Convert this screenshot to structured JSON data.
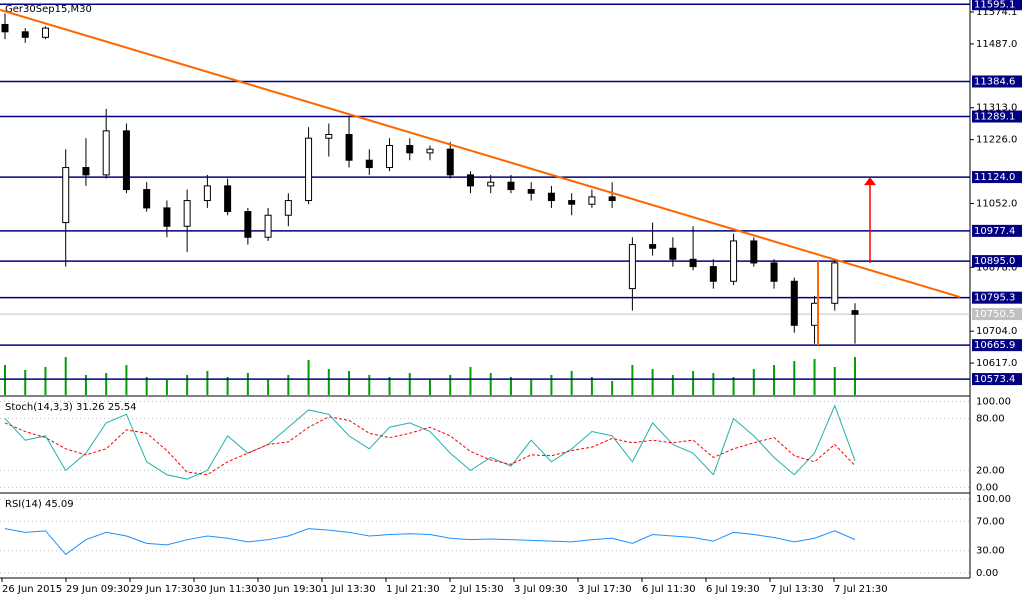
{
  "chart_data": {
    "type": "candlestick",
    "title": "Ger30Sep15,M30",
    "x_labels": [
      "26 Jun 2015",
      "29 Jun 09:30",
      "29 Jun 17:30",
      "30 Jun 11:30",
      "30 Jun 19:30",
      "1 Jul 13:30",
      "1 Jul 21:30",
      "2 Jul 15:30",
      "3 Jul 09:30",
      "3 Jul 17:30",
      "6 Jul 11:30",
      "6 Jul 19:30",
      "7 Jul 13:30",
      "7 Jul 21:30"
    ],
    "ylim": [
      10530,
      11606.7
    ],
    "yticks": [
      {
        "value": 11574.1,
        "label": "11574.1"
      },
      {
        "value": 11487,
        "label": "11487.0"
      },
      {
        "value": 11313,
        "label": "11313.0"
      },
      {
        "value": 11226,
        "label": "11226.0"
      },
      {
        "value": 11052,
        "label": "11052.0"
      },
      {
        "value": 10878,
        "label": "10878.0"
      },
      {
        "value": 10704,
        "label": "10704.0"
      },
      {
        "value": 10617,
        "label": "10617.0"
      }
    ],
    "open": [
      11540,
      11520,
      11505,
      11000,
      11150,
      11130,
      11250,
      11090,
      11040,
      10990,
      11060,
      11100,
      11030,
      10960,
      11020,
      11060,
      11230,
      11240,
      11170,
      11150,
      11210,
      11190,
      11200,
      11130,
      11100,
      11110,
      11090,
      11080,
      11060,
      11050,
      11070,
      10820,
      10940,
      10930,
      10900,
      10880,
      10840,
      10950,
      10890,
      10840,
      10720,
      10780,
      10760
    ],
    "high": [
      11570,
      11530,
      11535,
      11200,
      11230,
      11310,
      11270,
      11110,
      11060,
      11090,
      11130,
      11120,
      11040,
      11040,
      11080,
      11260,
      11270,
      11290,
      11200,
      11230,
      11230,
      11210,
      11220,
      11140,
      11130,
      11130,
      11110,
      11100,
      11080,
      11090,
      11110,
      10960,
      11000,
      10960,
      10990,
      10900,
      10970,
      10960,
      10900,
      10850,
      10800,
      10900,
      10780
    ],
    "low": [
      11500,
      11490,
      11500,
      10880,
      11100,
      11120,
      11080,
      11030,
      10960,
      10920,
      11040,
      11020,
      10940,
      10950,
      10990,
      11050,
      11180,
      11150,
      11130,
      11140,
      11170,
      11170,
      11120,
      11080,
      11080,
      11080,
      11060,
      11040,
      11020,
      11040,
      11040,
      10760,
      10910,
      10880,
      10870,
      10820,
      10830,
      10880,
      10820,
      10700,
      10670,
      10760,
      10670
    ],
    "close": [
      11520,
      11505,
      11530,
      11150,
      11130,
      11250,
      11090,
      11040,
      10990,
      11060,
      11100,
      11030,
      10960,
      11020,
      11060,
      11230,
      11240,
      11170,
      11150,
      11210,
      11190,
      11200,
      11130,
      11100,
      11110,
      11090,
      11080,
      11060,
      11050,
      11070,
      11060,
      10940,
      10930,
      10900,
      10880,
      10840,
      10950,
      10890,
      10840,
      10720,
      10780,
      10890,
      10750
    ],
    "up_color": "#000000",
    "down_color": "#000000",
    "volume": [
      30,
      25,
      28,
      38,
      20,
      22,
      30,
      18,
      15,
      20,
      24,
      18,
      22,
      16,
      20,
      35,
      26,
      24,
      20,
      18,
      22,
      16,
      20,
      28,
      22,
      18,
      16,
      20,
      24,
      18,
      14,
      30,
      26,
      20,
      24,
      22,
      18,
      26,
      30,
      34,
      36,
      28,
      38
    ],
    "volume_ylim": [
      0,
      40
    ],
    "volume_color": "#00a000",
    "levels": [
      {
        "value": 11595.1,
        "label": "11595.1"
      },
      {
        "value": 11384.6,
        "label": "11384.6"
      },
      {
        "value": 11289.1,
        "label": "11289.1"
      },
      {
        "value": 11124,
        "label": "11124.0"
      },
      {
        "value": 10977.4,
        "label": "10977.4"
      },
      {
        "value": 10895,
        "label": "10895.0"
      },
      {
        "value": 10795.3,
        "label": "10795.3"
      },
      {
        "value": 10665.9,
        "label": "10665.9"
      },
      {
        "value": 10573.4,
        "label": "10573.4"
      }
    ],
    "level_color": "#000080",
    "current_price": {
      "value": 10750.5,
      "label": "10750.5"
    },
    "trendline": {
      "color": "#ff6600",
      "values": [
        11580,
        10797
      ]
    },
    "target_arrow": {
      "color": "#ff0000",
      "values": [
        10890,
        11124
      ]
    },
    "range_marker": {
      "color": "#ff6600",
      "values": [
        10895,
        10665.9
      ]
    },
    "stoch": {
      "label": "Stoch(14,3,3) 31.26 25.54",
      "ylim": [
        -5,
        105
      ],
      "yticks": [
        {
          "value": 100,
          "label": "100.00"
        },
        {
          "value": 80,
          "label": "80.00"
        },
        {
          "value": 20,
          "label": "20.00"
        },
        {
          "value": 0,
          "label": "0.00"
        }
      ],
      "series": [
        {
          "color": "#20b2aa",
          "values": [
            80,
            55,
            60,
            20,
            40,
            75,
            85,
            30,
            15,
            10,
            20,
            60,
            40,
            50,
            70,
            90,
            85,
            60,
            45,
            70,
            75,
            65,
            40,
            20,
            35,
            25,
            55,
            30,
            45,
            65,
            60,
            30,
            75,
            50,
            40,
            15,
            80,
            60,
            35,
            15,
            40,
            95,
            31.26
          ]
        },
        {
          "color": "#ff0000",
          "values": [
            75,
            65,
            58,
            45,
            38,
            45,
            67,
            63,
            43,
            18,
            15,
            30,
            40,
            50,
            53,
            70,
            82,
            78,
            63,
            58,
            63,
            70,
            60,
            42,
            32,
            27,
            38,
            37,
            43,
            47,
            57,
            52,
            55,
            52,
            55,
            35,
            45,
            52,
            58,
            37,
            30,
            50,
            25.54
          ]
        }
      ]
    },
    "rsi": {
      "label": "RSI(14) 45.09",
      "ylim": [
        -7,
        107
      ],
      "yticks": [
        {
          "value": 100,
          "label": "100.00"
        },
        {
          "value": 70,
          "label": "70.00"
        },
        {
          "value": 30,
          "label": "30.00"
        },
        {
          "value": 0,
          "label": "0.00"
        }
      ],
      "color": "#1e90ff",
      "values": [
        60,
        55,
        57,
        25,
        45,
        55,
        50,
        40,
        38,
        45,
        50,
        47,
        42,
        45,
        50,
        60,
        58,
        55,
        50,
        52,
        53,
        52,
        47,
        45,
        46,
        45,
        44,
        43,
        42,
        45,
        47,
        40,
        52,
        50,
        48,
        43,
        55,
        52,
        48,
        42,
        47,
        57,
        45.09
      ]
    }
  }
}
